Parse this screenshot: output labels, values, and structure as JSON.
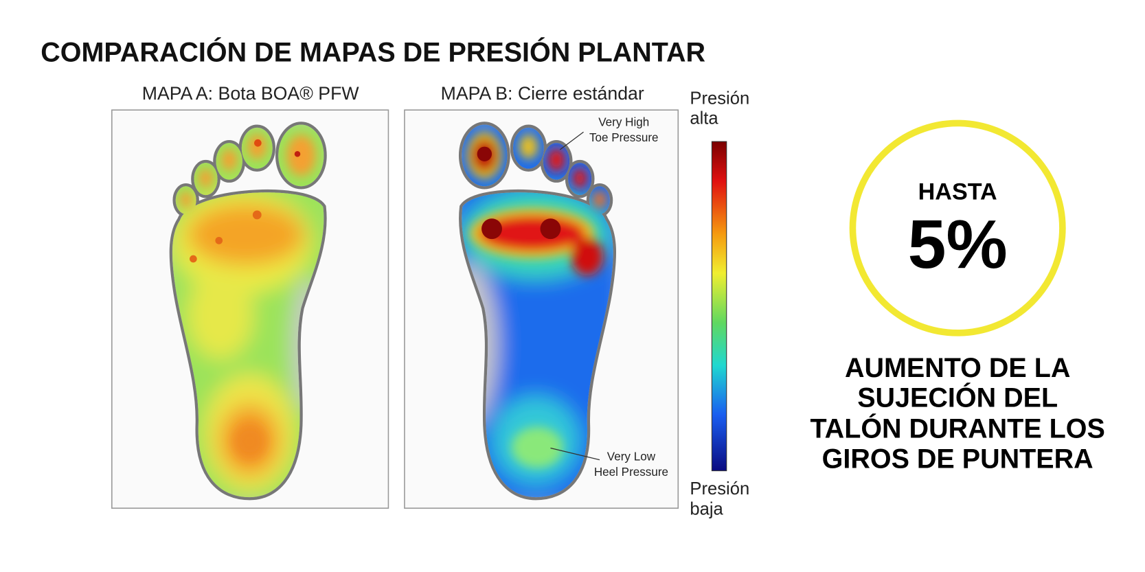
{
  "header": {
    "title": "COMPARACIÓN DE MAPAS DE PRESIÓN PLANTAR"
  },
  "maps": [
    {
      "label": "MAPA A: Bota BOA® PFW"
    },
    {
      "label": "MAPA B: Cierre estándar",
      "annotations": [
        {
          "lines": [
            "Very High",
            "Toe Pressure"
          ]
        },
        {
          "lines": [
            "Very Low",
            "Heel Pressure"
          ]
        }
      ]
    }
  ],
  "scale": {
    "top_lines": [
      "Presión",
      "alta"
    ],
    "bottom_lines": [
      "Presión",
      "baja"
    ]
  },
  "highlight": {
    "prefix": "HASTA",
    "value": "5%",
    "description_lines": [
      "AUMENTO DE LA",
      "SUJECIÓN DEL",
      "TALÓN DURANTE LOS",
      "GIROS DE PUNTERA"
    ]
  }
}
